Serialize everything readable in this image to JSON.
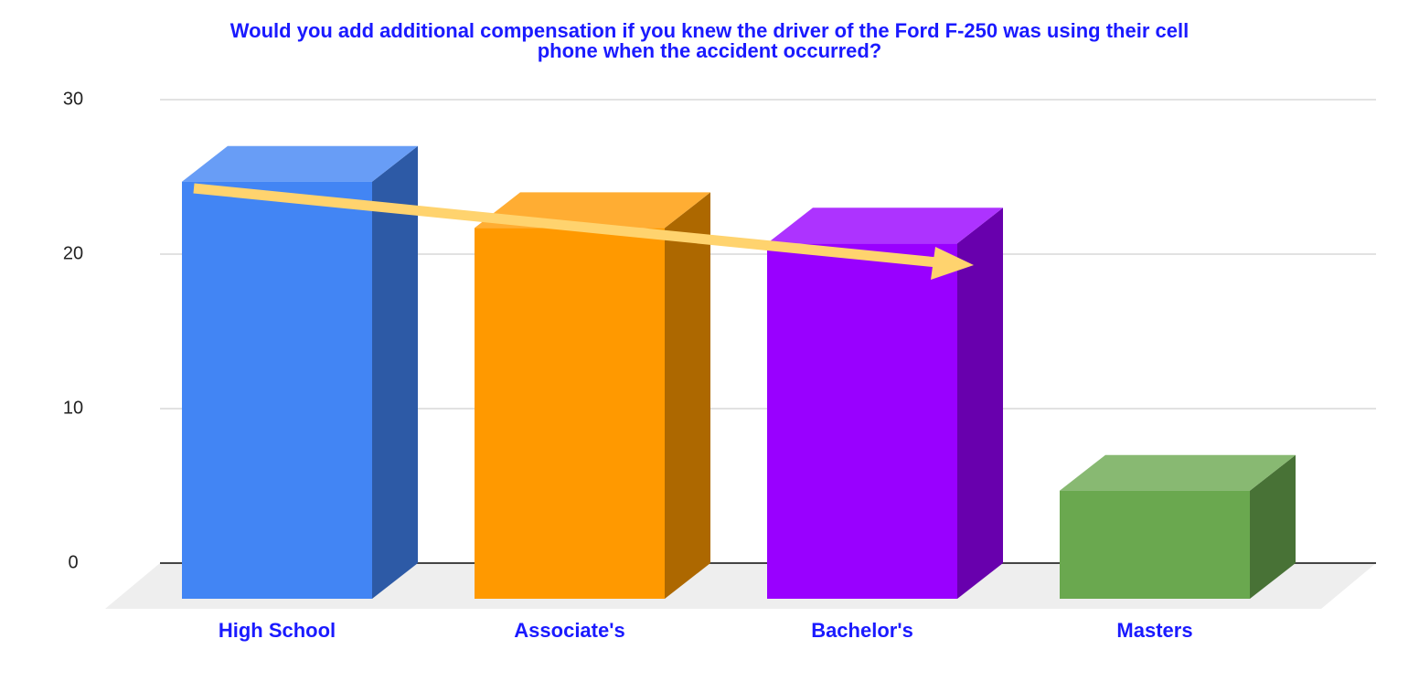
{
  "chart_data": {
    "type": "bar3d",
    "title": "Would you add additional compensation if you knew the driver of the Ford F-250 was using their cell phone when the accident occurred?",
    "categories": [
      "High School",
      "Associate's",
      "Bachelor's",
      "Masters"
    ],
    "values": [
      27,
      24,
      23,
      7
    ],
    "colors": [
      "#4285f4",
      "#ff9900",
      "#9900ff",
      "#6aa84f"
    ],
    "ylim": [
      0,
      30
    ],
    "yticks": [
      0,
      10,
      20,
      30
    ],
    "grid": true
  }
}
